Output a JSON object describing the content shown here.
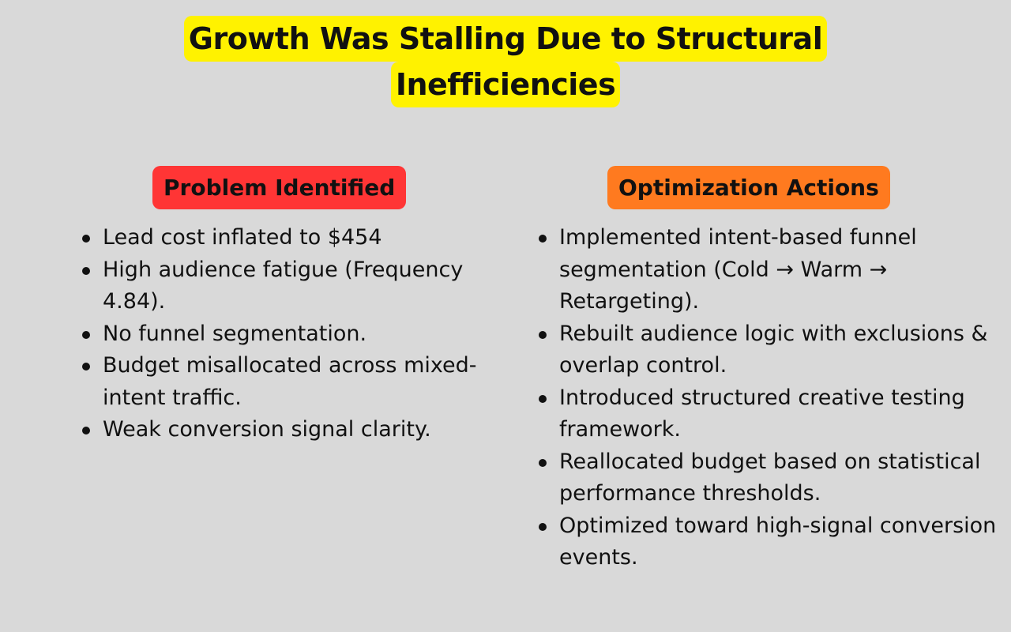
{
  "title": {
    "line1": "Growth Was Stalling Due to Structural",
    "line2": "Inefficiencies"
  },
  "left": {
    "heading": "Problem Identified",
    "heading_color": "#ff3535",
    "items": [
      "Lead cost inflated to $454",
      "High audience fatigue (Frequency 4.84).",
      "No funnel segmentation.",
      "Budget misallocated across mixed-intent traffic.",
      "Weak conversion signal clarity."
    ]
  },
  "right": {
    "heading": "Optimization Actions",
    "heading_color": "#ff7a1f",
    "items": [
      "Implemented intent-based funnel segmentation (Cold → Warm → Retargeting).",
      "Rebuilt audience logic with exclusions & overlap control.",
      "Introduced structured creative testing framework.",
      "Reallocated budget based on statistical performance thresholds.",
      "Optimized toward high-signal conversion events."
    ]
  },
  "colors": {
    "background": "#d9d9d9",
    "title_highlight": "#fff200"
  }
}
